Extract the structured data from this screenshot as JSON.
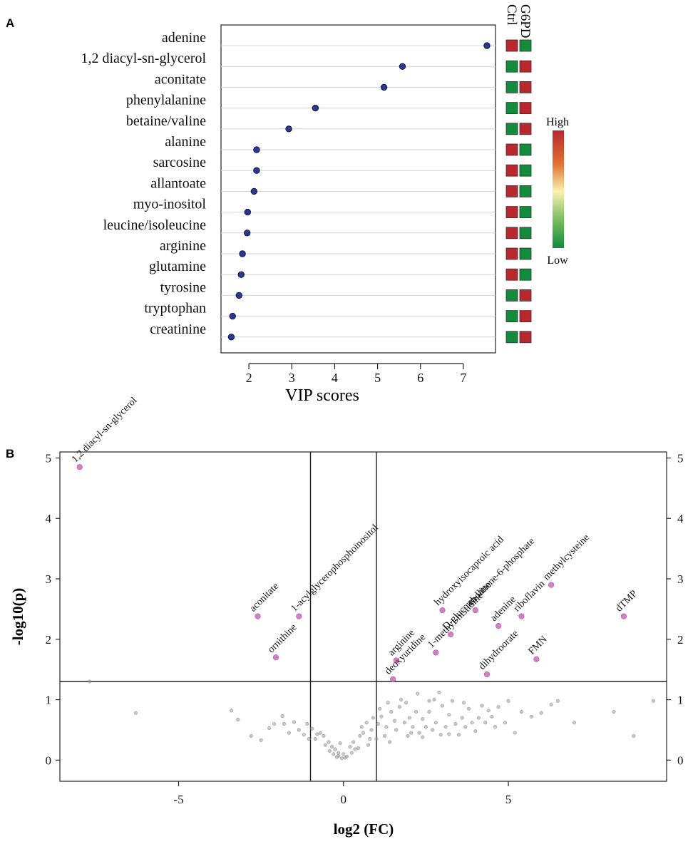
{
  "chart_data": [
    {
      "panel_label": "A",
      "type": "scatter",
      "subtype": "vip-dot-plot",
      "xlabel": "VIP scores",
      "xticks": [
        2,
        3,
        4,
        5,
        6,
        7
      ],
      "xlim": [
        1.35,
        7.75
      ],
      "metabolites": [
        {
          "name": "adenine",
          "vip": 7.55,
          "ctrl": "high",
          "g6pd": "low"
        },
        {
          "name": "1,2 diacyl-sn-glycerol",
          "vip": 5.58,
          "ctrl": "low",
          "g6pd": "high"
        },
        {
          "name": "aconitate",
          "vip": 5.15,
          "ctrl": "low",
          "g6pd": "high"
        },
        {
          "name": "phenylalanine",
          "vip": 3.55,
          "ctrl": "low",
          "g6pd": "high"
        },
        {
          "name": "betaine/valine",
          "vip": 2.93,
          "ctrl": "low",
          "g6pd": "high"
        },
        {
          "name": "alanine",
          "vip": 2.18,
          "ctrl": "high",
          "g6pd": "low"
        },
        {
          "name": "sarcosine",
          "vip": 2.18,
          "ctrl": "high",
          "g6pd": "low"
        },
        {
          "name": "allantoate",
          "vip": 2.12,
          "ctrl": "high",
          "g6pd": "low"
        },
        {
          "name": "myo-inositol",
          "vip": 1.97,
          "ctrl": "high",
          "g6pd": "low"
        },
        {
          "name": "leucine/isoleucine",
          "vip": 1.96,
          "ctrl": "high",
          "g6pd": "low"
        },
        {
          "name": "arginine",
          "vip": 1.85,
          "ctrl": "high",
          "g6pd": "low"
        },
        {
          "name": "glutamine",
          "vip": 1.82,
          "ctrl": "high",
          "g6pd": "low"
        },
        {
          "name": "tyrosine",
          "vip": 1.77,
          "ctrl": "low",
          "g6pd": "high"
        },
        {
          "name": "tryptophan",
          "vip": 1.62,
          "ctrl": "low",
          "g6pd": "high"
        },
        {
          "name": "creatinine",
          "vip": 1.59,
          "ctrl": "low",
          "g6pd": "high"
        }
      ],
      "heatmap_columns": [
        "Ctrl",
        "G6PD"
      ],
      "colors": {
        "high": "#b8282e",
        "low": "#138a3c",
        "dot": "#2b3990"
      },
      "legend": {
        "high_label": "High",
        "low_label": "Low"
      }
    },
    {
      "panel_label": "B",
      "type": "scatter",
      "subtype": "volcano",
      "xlabel": "log2 (FC)",
      "ylabel": "-log10(p)",
      "xlim": [
        -8.6,
        9.8
      ],
      "ylim": [
        -0.35,
        5.1
      ],
      "xticks": [
        -5,
        0,
        5
      ],
      "yticks": [
        0,
        1,
        2,
        3,
        4,
        5
      ],
      "fc_threshold_lines": [
        -1,
        1
      ],
      "p_threshold_line": 1.3,
      "significant": [
        {
          "label": "1,2 diacyl-sn-glycerol",
          "x": -8.0,
          "y": 4.85
        },
        {
          "label": "aconitate",
          "x": -2.6,
          "y": 2.38
        },
        {
          "label": "1-acylglycerophosphoinositol",
          "x": -1.35,
          "y": 2.38
        },
        {
          "label": "ornithine",
          "x": -2.05,
          "y": 1.7
        },
        {
          "label": "arginine",
          "x": 1.6,
          "y": 1.65
        },
        {
          "label": "deoxyuridine",
          "x": 1.5,
          "y": 1.34
        },
        {
          "label": "hydroxyisocaproic acid",
          "x": 3.0,
          "y": 2.48
        },
        {
          "label": "D-glucono-lattone-6-phosphate",
          "x": 3.25,
          "y": 2.08
        },
        {
          "label": "1-methyl-histidine",
          "x": 2.8,
          "y": 1.78
        },
        {
          "label": "choline",
          "x": 4.0,
          "y": 2.48
        },
        {
          "label": "adenine",
          "x": 4.7,
          "y": 2.22
        },
        {
          "label": "dihydroorate",
          "x": 4.35,
          "y": 1.42
        },
        {
          "label": "riboflavin",
          "x": 5.4,
          "y": 2.38
        },
        {
          "label": "methylcysteine",
          "x": 6.3,
          "y": 2.9
        },
        {
          "label": "FMN",
          "x": 5.85,
          "y": 1.67
        },
        {
          "label": "dTMP",
          "x": 8.5,
          "y": 2.38
        }
      ],
      "nonsignificant": [
        [
          -7.7,
          1.3
        ],
        [
          -6.3,
          0.78
        ],
        [
          -3.4,
          0.82
        ],
        [
          -3.2,
          0.67
        ],
        [
          -2.8,
          0.4
        ],
        [
          -2.5,
          0.33
        ],
        [
          -2.25,
          0.53
        ],
        [
          -2.1,
          0.6
        ],
        [
          -1.85,
          0.73
        ],
        [
          -1.8,
          0.6
        ],
        [
          -1.65,
          0.45
        ],
        [
          -1.5,
          0.63
        ],
        [
          -1.35,
          0.5
        ],
        [
          -1.2,
          0.42
        ],
        [
          -1.1,
          0.6
        ],
        [
          -1.05,
          0.35
        ],
        [
          -0.95,
          0.52
        ],
        [
          -0.85,
          0.35
        ],
        [
          -0.8,
          0.43
        ],
        [
          -0.7,
          0.45
        ],
        [
          -0.6,
          0.4
        ],
        [
          -0.55,
          0.25
        ],
        [
          -0.45,
          0.3
        ],
        [
          -0.42,
          0.15
        ],
        [
          -0.35,
          0.22
        ],
        [
          -0.3,
          0.1
        ],
        [
          -0.25,
          0.18
        ],
        [
          -0.2,
          0.05
        ],
        [
          -0.15,
          0.12
        ],
        [
          -0.1,
          0.28
        ],
        [
          -0.05,
          0.03
        ],
        [
          0.0,
          0.1
        ],
        [
          0.05,
          0.04
        ],
        [
          0.1,
          0.06
        ],
        [
          0.2,
          0.22
        ],
        [
          0.25,
          0.12
        ],
        [
          0.3,
          0.3
        ],
        [
          0.45,
          0.2
        ],
        [
          0.5,
          0.4
        ],
        [
          0.55,
          0.55
        ],
        [
          0.6,
          0.45
        ],
        [
          0.7,
          0.62
        ],
        [
          0.8,
          0.35
        ],
        [
          0.85,
          0.5
        ],
        [
          0.9,
          0.7
        ],
        [
          1.05,
          0.6
        ],
        [
          1.1,
          0.85
        ],
        [
          1.15,
          0.72
        ],
        [
          1.25,
          0.4
        ],
        [
          1.3,
          0.55
        ],
        [
          1.35,
          0.95
        ],
        [
          1.45,
          0.8
        ],
        [
          1.55,
          0.65
        ],
        [
          1.6,
          0.5
        ],
        [
          1.7,
          0.88
        ],
        [
          1.75,
          1.0
        ],
        [
          1.85,
          0.62
        ],
        [
          1.9,
          0.95
        ],
        [
          2.0,
          0.7
        ],
        [
          2.05,
          0.45
        ],
        [
          2.1,
          0.55
        ],
        [
          2.2,
          0.8
        ],
        [
          2.25,
          1.1
        ],
        [
          2.3,
          0.45
        ],
        [
          2.4,
          0.68
        ],
        [
          2.5,
          0.55
        ],
        [
          2.6,
          0.8
        ],
        [
          2.7,
          0.5
        ],
        [
          2.75,
          1.0
        ],
        [
          2.8,
          0.62
        ],
        [
          2.9,
          1.12
        ],
        [
          2.95,
          0.42
        ],
        [
          3.0,
          0.9
        ],
        [
          3.1,
          0.55
        ],
        [
          3.2,
          0.75
        ],
        [
          3.3,
          0.98
        ],
        [
          3.4,
          0.6
        ],
        [
          3.5,
          0.42
        ],
        [
          3.6,
          0.7
        ],
        [
          3.7,
          0.55
        ],
        [
          3.8,
          0.85
        ],
        [
          3.9,
          0.62
        ],
        [
          4.0,
          0.48
        ],
        [
          4.1,
          0.7
        ],
        [
          4.2,
          0.9
        ],
        [
          4.3,
          0.62
        ],
        [
          4.4,
          0.82
        ],
        [
          4.5,
          0.72
        ],
        [
          4.6,
          0.55
        ],
        [
          4.7,
          0.88
        ],
        [
          4.9,
          0.62
        ],
        [
          5.0,
          0.98
        ],
        [
          5.2,
          0.45
        ],
        [
          5.4,
          0.8
        ],
        [
          5.7,
          0.72
        ],
        [
          6.0,
          0.78
        ],
        [
          6.3,
          0.92
        ],
        [
          6.5,
          0.98
        ],
        [
          7.0,
          0.62
        ],
        [
          8.2,
          0.8
        ],
        [
          8.8,
          0.4
        ],
        [
          9.4,
          0.98
        ],
        [
          2.4,
          0.38
        ],
        [
          3.2,
          0.43
        ],
        [
          1.0,
          0.35
        ],
        [
          0.35,
          0.18
        ],
        [
          -0.15,
          0.07
        ],
        [
          1.95,
          0.4
        ],
        [
          2.6,
          0.98
        ],
        [
          1.4,
          0.3
        ],
        [
          0.75,
          0.25
        ],
        [
          3.65,
          0.95
        ]
      ],
      "colors": {
        "significant": "#d27fc5",
        "nonsignificant": "#9a9a9a"
      }
    }
  ]
}
